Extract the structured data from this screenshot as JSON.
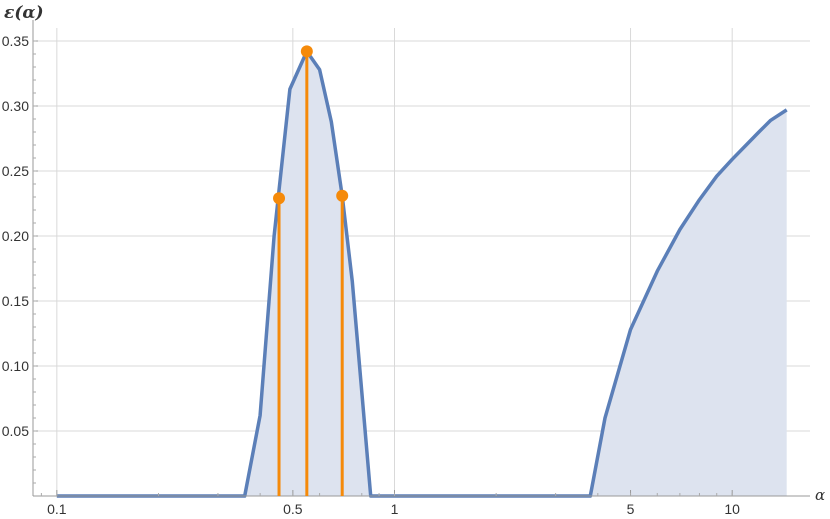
{
  "chart_data": {
    "type": "area",
    "xlabel": "α",
    "ylabel": "ε(α)",
    "x_scale": "log",
    "xlim": [
      0.085,
      17
    ],
    "ylim": [
      0,
      0.36
    ],
    "grid": true,
    "x_ticks": [
      {
        "value": 0.1,
        "label": "0.1"
      },
      {
        "value": 0.5,
        "label": "0.5"
      },
      {
        "value": 1,
        "label": "1"
      },
      {
        "value": 5,
        "label": "5"
      },
      {
        "value": 10,
        "label": "10"
      }
    ],
    "y_ticks": [
      {
        "value": 0.05,
        "label": "0.05"
      },
      {
        "value": 0.1,
        "label": "0.10"
      },
      {
        "value": 0.15,
        "label": "0.15"
      },
      {
        "value": 0.2,
        "label": "0.20"
      },
      {
        "value": 0.25,
        "label": "0.25"
      },
      {
        "value": 0.3,
        "label": "0.30"
      },
      {
        "value": 0.35,
        "label": "0.35"
      }
    ],
    "series": [
      {
        "points": [
          [
            0.1,
            0
          ],
          [
            0.36,
            0
          ],
          [
            0.4,
            0.062
          ],
          [
            0.44,
            0.2
          ],
          [
            0.49,
            0.313
          ],
          [
            0.55,
            0.342
          ],
          [
            0.6,
            0.328
          ],
          [
            0.65,
            0.288
          ],
          [
            0.7,
            0.231
          ],
          [
            0.75,
            0.165
          ],
          [
            0.8,
            0.08
          ],
          [
            0.85,
            0
          ],
          [
            3.8,
            0
          ],
          [
            4.2,
            0.06
          ],
          [
            5.0,
            0.128
          ],
          [
            6.0,
            0.173
          ],
          [
            7.0,
            0.205
          ],
          [
            8.0,
            0.228
          ],
          [
            9.0,
            0.246
          ],
          [
            10.0,
            0.259
          ],
          [
            11.0,
            0.27
          ],
          [
            12.0,
            0.28
          ],
          [
            13.0,
            0.289
          ],
          [
            14.5,
            0.297
          ]
        ],
        "color": "#5b7fb8",
        "fill": "#dde3ef"
      }
    ],
    "markers": [
      {
        "x": 0.455,
        "y": 0.229
      },
      {
        "x": 0.55,
        "y": 0.342
      },
      {
        "x": 0.7,
        "y": 0.231
      }
    ],
    "marker_color": "#f58a0a"
  }
}
